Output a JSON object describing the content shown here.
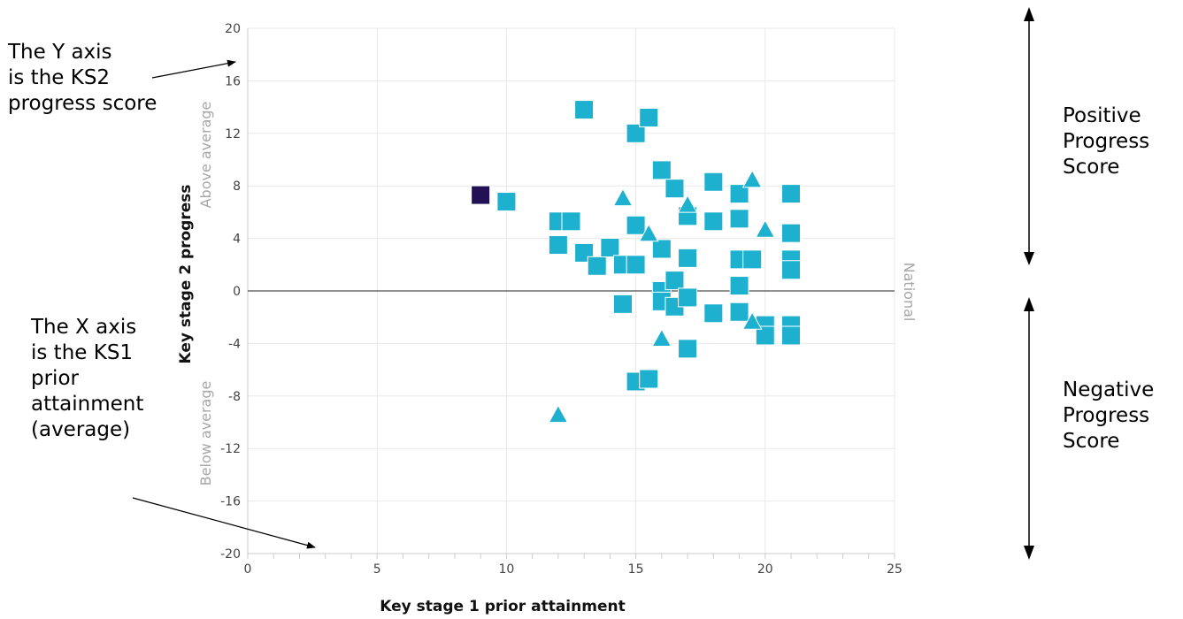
{
  "chart_data": {
    "type": "scatter",
    "xlabel": "Key stage 1 prior attainment",
    "ylabel": "Key stage 2 progress",
    "xlim": [
      0,
      25
    ],
    "ylim": [
      -20,
      20
    ],
    "x_ticks": [
      0,
      5,
      10,
      15,
      20,
      25
    ],
    "y_ticks": [
      -20,
      -16,
      -12,
      -8,
      -4,
      0,
      4,
      8,
      12,
      16,
      20
    ],
    "grid": true,
    "reference_line": {
      "y": 0,
      "label": "National"
    },
    "above_label": "Above average",
    "below_label": "Below average",
    "highlight_color": "#221155",
    "point_color": "#1eb1cf",
    "series": [
      {
        "marker": "square",
        "color": "#221155",
        "points": [
          [
            9.0,
            7.3
          ]
        ]
      },
      {
        "marker": "square",
        "color": "#1eb1cf",
        "points": [
          [
            10.0,
            6.8
          ],
          [
            12.0,
            5.3
          ],
          [
            12.5,
            5.3
          ],
          [
            12.0,
            3.5
          ],
          [
            13.0,
            13.8
          ],
          [
            13.0,
            2.9
          ],
          [
            13.5,
            1.9
          ],
          [
            14.0,
            3.3
          ],
          [
            14.5,
            2.0
          ],
          [
            15.0,
            2.0
          ],
          [
            14.5,
            -1.0
          ],
          [
            15.0,
            12.0
          ],
          [
            15.5,
            13.2
          ],
          [
            15.0,
            5.0
          ],
          [
            15.0,
            -6.9
          ],
          [
            15.5,
            -6.7
          ],
          [
            16.0,
            9.2
          ],
          [
            16.0,
            3.2
          ],
          [
            16.0,
            0.0
          ],
          [
            16.0,
            -0.8
          ],
          [
            16.5,
            7.8
          ],
          [
            16.5,
            0.8
          ],
          [
            16.5,
            -1.2
          ],
          [
            17.0,
            5.7
          ],
          [
            17.0,
            2.5
          ],
          [
            17.0,
            -0.5
          ],
          [
            17.0,
            -4.4
          ],
          [
            18.0,
            8.3
          ],
          [
            18.0,
            5.3
          ],
          [
            18.0,
            -1.7
          ],
          [
            19.0,
            7.4
          ],
          [
            19.0,
            5.5
          ],
          [
            19.0,
            2.4
          ],
          [
            19.0,
            0.4
          ],
          [
            19.0,
            -1.6
          ],
          [
            19.5,
            2.4
          ],
          [
            20.0,
            -2.6
          ],
          [
            20.0,
            -3.4
          ],
          [
            21.0,
            7.4
          ],
          [
            21.0,
            4.4
          ],
          [
            21.0,
            2.4
          ],
          [
            21.0,
            1.6
          ],
          [
            21.0,
            -2.6
          ],
          [
            21.0,
            -3.4
          ]
        ]
      },
      {
        "marker": "triangle",
        "color": "#1eb1cf",
        "points": [
          [
            12.0,
            -9.5
          ],
          [
            14.5,
            7.0
          ],
          [
            15.5,
            4.3
          ],
          [
            16.0,
            -3.7
          ],
          [
            17.0,
            6.5
          ],
          [
            19.5,
            8.4
          ],
          [
            19.5,
            -2.4
          ],
          [
            20.0,
            4.6
          ]
        ]
      }
    ]
  },
  "annotations": {
    "y_axis_note": "The Y axis\nis the KS2\nprogress score",
    "x_axis_note": "The X axis\nis the KS1\nprior\nattainment\n(average)",
    "positive_note": "Positive\nProgress\nScore",
    "negative_note": "Negative\nProgress\nScore"
  }
}
